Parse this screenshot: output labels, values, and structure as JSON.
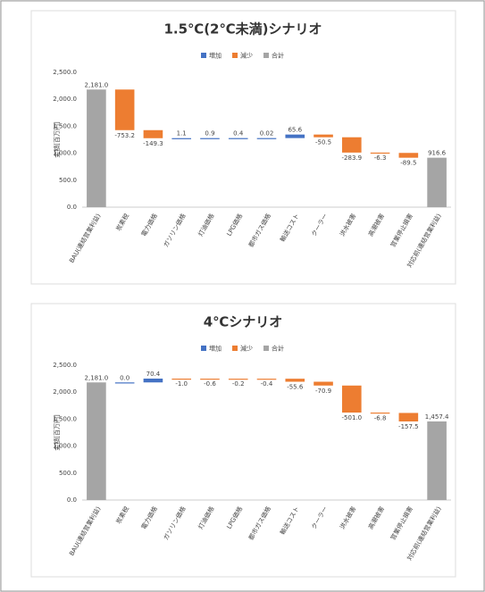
{
  "chart_data": [
    {
      "type": "waterfall",
      "title": "1.5℃(2℃未満)シナリオ",
      "y_label": "金額[百万円]",
      "legend": [
        {
          "name": "増加",
          "color": "#4472c4"
        },
        {
          "name": "減少",
          "color": "#ed7d31"
        },
        {
          "name": "合計",
          "color": "#a5a5a5"
        }
      ],
      "categories": [
        "BAU(連結営業利益)",
        "炭素税",
        "電力価格",
        "ガソリン価格",
        "灯油価格",
        "LPG価格",
        "都市ガス価格",
        "輸送コスト",
        "クーラー",
        "洪水被害",
        "高潮被害",
        "営業停止損害",
        "対応前(連結営業利益)"
      ],
      "values": [
        2181.0,
        -753.2,
        -149.3,
        1.1,
        0.9,
        0.4,
        0.02,
        65.6,
        -50.5,
        -283.9,
        -6.3,
        -89.5,
        916.6
      ],
      "value_labels": [
        "2,181.0",
        "-753.2",
        "-149.3",
        "1.1",
        "0.9",
        "0.4",
        "0.02",
        "65.6",
        "-50.5",
        "-283.9",
        "-6.3",
        "-89.5",
        "916.6"
      ],
      "ylim": [
        0,
        2500
      ],
      "yticks": [
        {
          "value": 0,
          "label": "0.0"
        },
        {
          "value": 500,
          "label": "500.0"
        },
        {
          "value": 1000,
          "label": "1,000.0"
        },
        {
          "value": 1500,
          "label": "1,500.0"
        },
        {
          "value": 2000,
          "label": "2,000.0"
        },
        {
          "value": 2500,
          "label": "2,500.0"
        }
      ],
      "grid": false
    },
    {
      "type": "waterfall",
      "title": "4℃シナリオ",
      "y_label": "金額[百万円]",
      "legend": [
        {
          "name": "増加",
          "color": "#4472c4"
        },
        {
          "name": "減少",
          "color": "#ed7d31"
        },
        {
          "name": "合計",
          "color": "#a5a5a5"
        }
      ],
      "categories": [
        "BAU(連結営業利益)",
        "炭素税",
        "電力価格",
        "ガソリン価格",
        "灯油価格",
        "LPG価格",
        "都市ガス価格",
        "輸送コスト",
        "クーラー",
        "洪水被害",
        "高潮被害",
        "営業停止損害",
        "対応前(連結営業利益)"
      ],
      "values": [
        2181.0,
        0.0,
        70.4,
        -1.0,
        -0.6,
        -0.2,
        -0.4,
        -55.6,
        -70.9,
        -501.0,
        -6.8,
        -157.5,
        1457.4
      ],
      "value_labels": [
        "2,181.0",
        "0.0",
        "70.4",
        "-1.0",
        "-0.6",
        "-0.2",
        "-0.4",
        "-55.6",
        "-70.9",
        "-501.0",
        "-6.8",
        "-157.5",
        "1,457.4"
      ],
      "ylim": [
        0,
        2500
      ],
      "yticks": [
        {
          "value": 0,
          "label": "0.0"
        },
        {
          "value": 500,
          "label": "500.0"
        },
        {
          "value": 1000,
          "label": "1,000.0"
        },
        {
          "value": 1500,
          "label": "1,500.0"
        },
        {
          "value": 2000,
          "label": "2,000.0"
        },
        {
          "value": 2500,
          "label": "2,500.0"
        }
      ],
      "grid": false
    }
  ]
}
